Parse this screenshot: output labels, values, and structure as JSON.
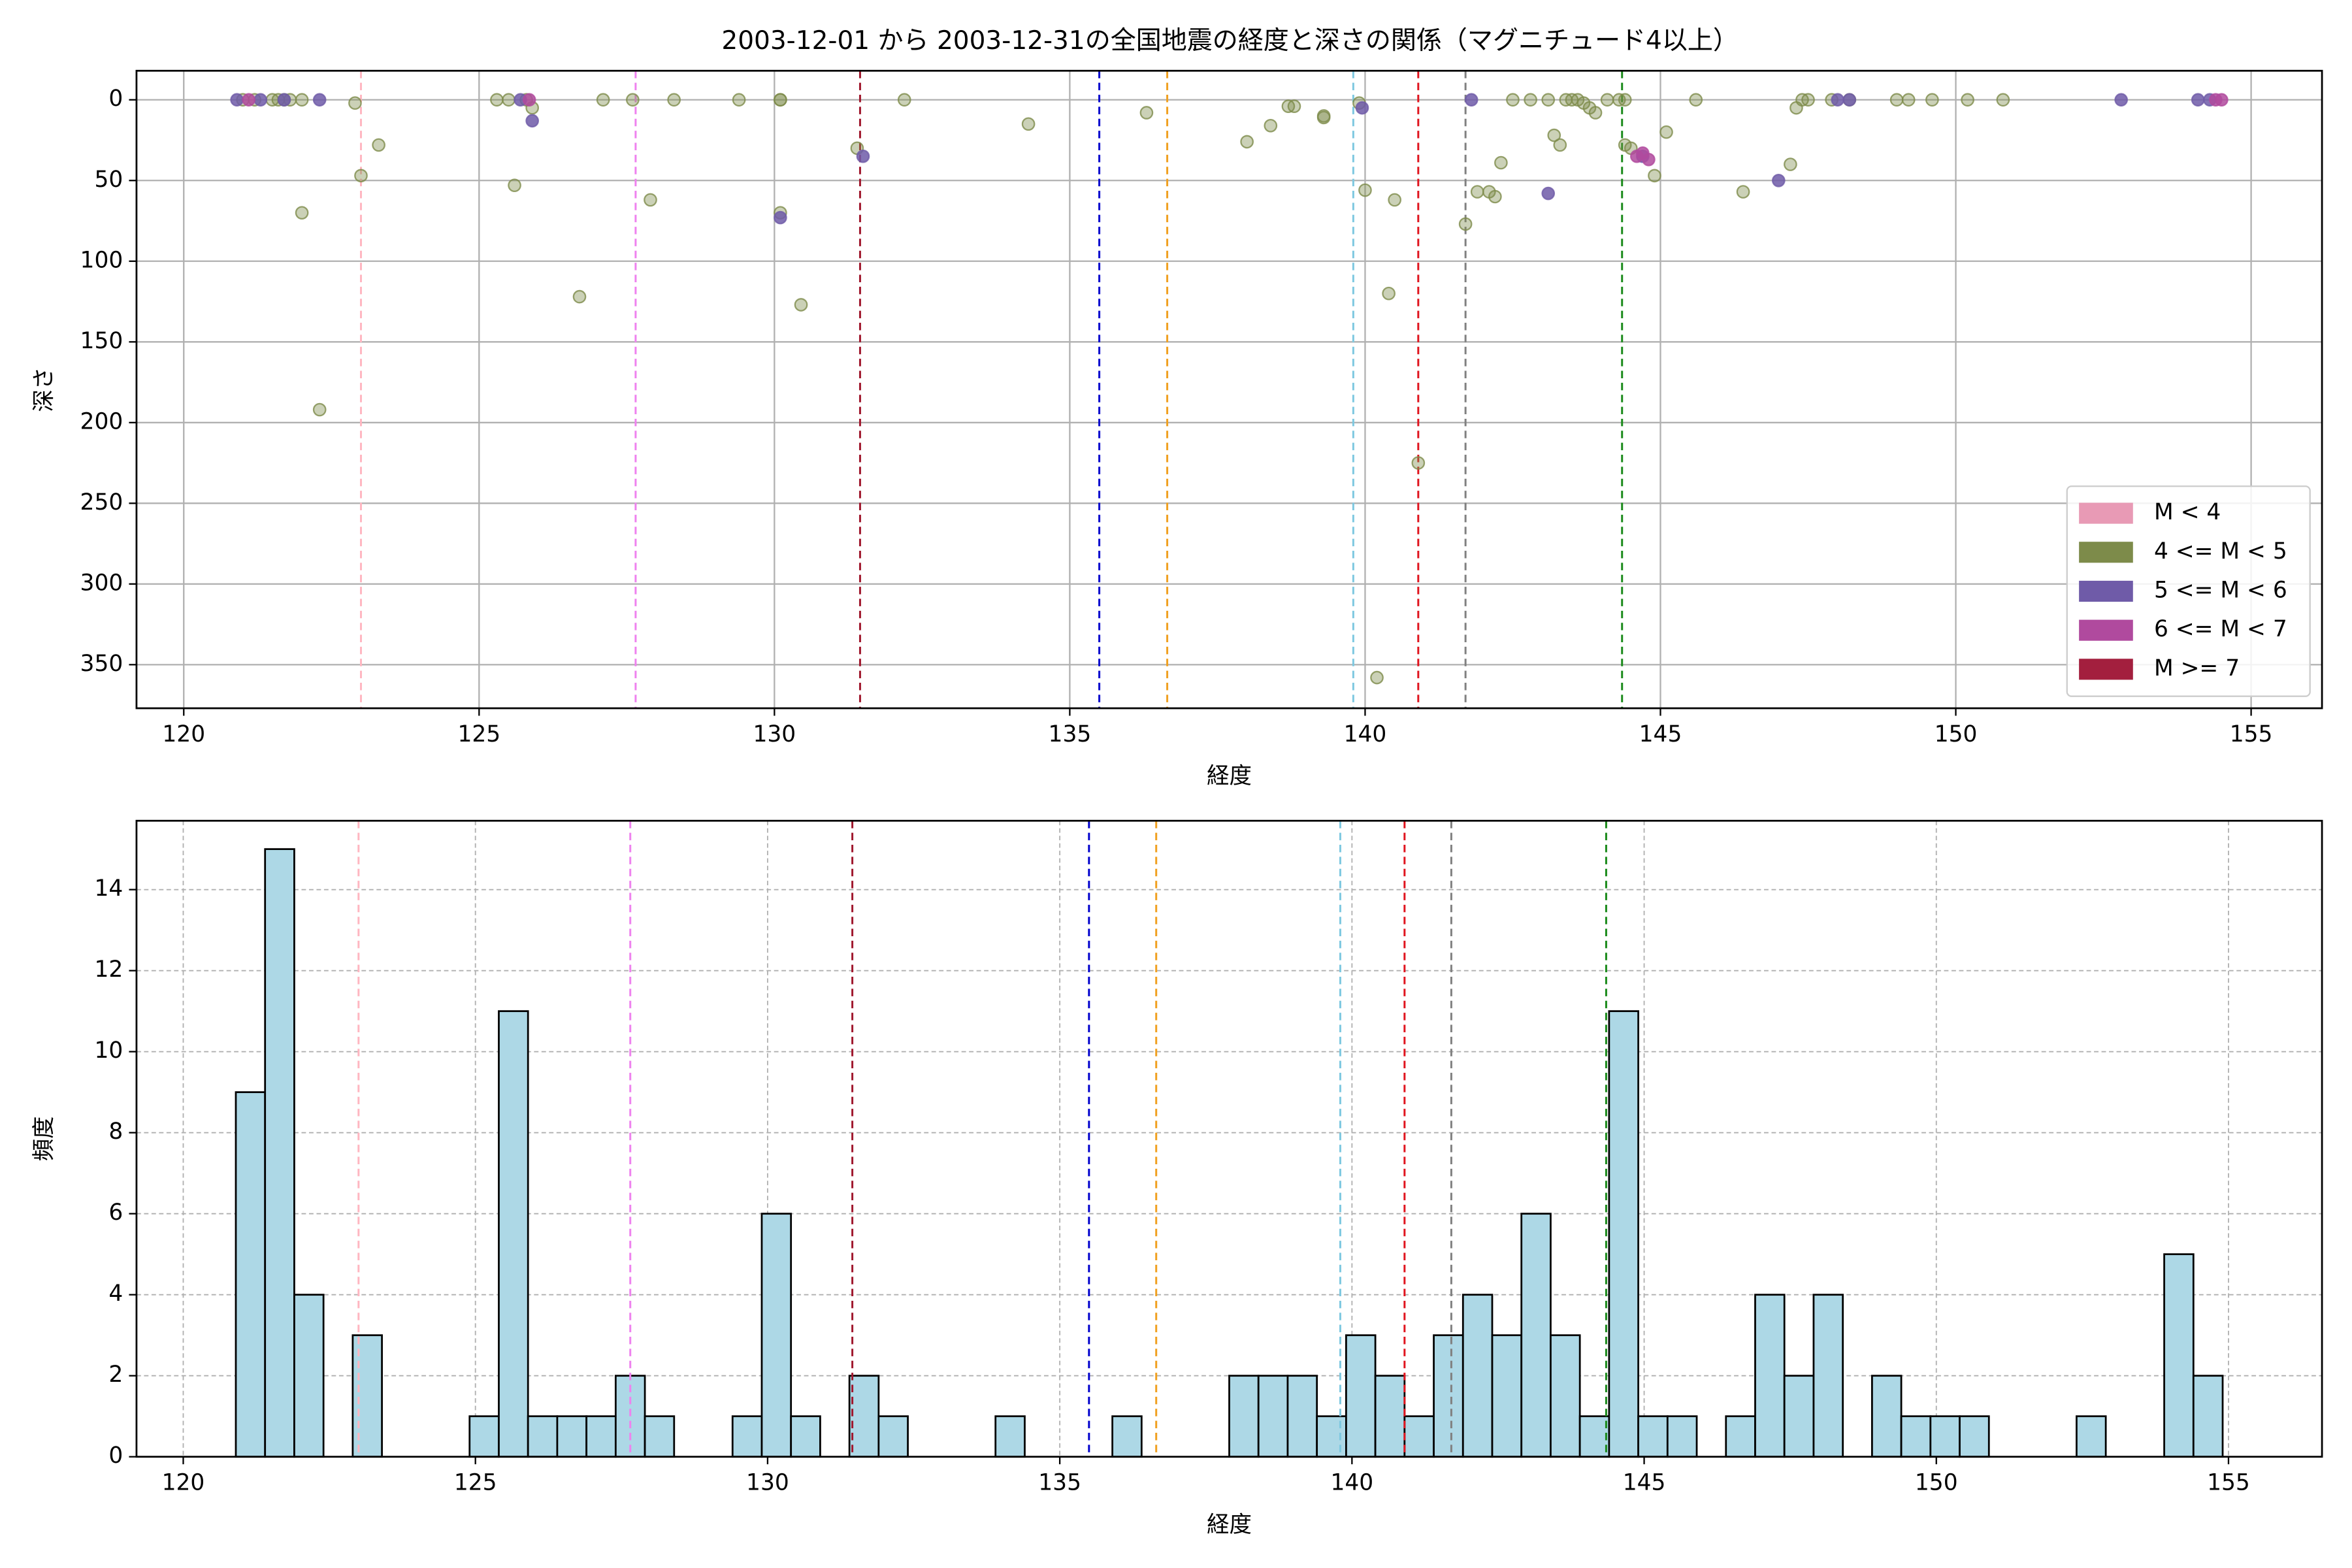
{
  "chart_data": [
    {
      "type": "scatter",
      "title": "2003-12-01 から 2003-12-31の全国地震の経度と深さの関係（マグニチュード4以上）",
      "x_label": "経度",
      "y_label": "深さ",
      "xlim": [
        119.2,
        156.2
      ],
      "xticks": [
        120,
        125,
        130,
        135,
        140,
        145,
        150,
        155
      ],
      "ylim": [
        377,
        -18
      ],
      "yticks": [
        0,
        50,
        100,
        150,
        200,
        250,
        300,
        350
      ],
      "grid": true,
      "legend": "lower right",
      "alpha": 0.4,
      "reference_lines": [
        {
          "value": 123.0,
          "color": "#ffb6c1"
        },
        {
          "value": 127.65,
          "color": "#ee82ee"
        },
        {
          "value": 131.45,
          "color": "#a0182e"
        },
        {
          "value": 135.5,
          "color": "#0000cc"
        },
        {
          "value": 136.65,
          "color": "#f0a020"
        },
        {
          "value": 139.8,
          "color": "#7ec8e0"
        },
        {
          "value": 140.9,
          "color": "#e0141e"
        },
        {
          "value": 141.7,
          "color": "#808080"
        },
        {
          "value": 144.35,
          "color": "#1a8a1a"
        }
      ],
      "series": [
        {
          "name": "M < 4",
          "color": "#e89ab5",
          "x": [],
          "values": []
        },
        {
          "name": "4 <= M < 5",
          "color": "#7d8b4a",
          "x": [
            121.0,
            121.2,
            121.5,
            121.6,
            121.7,
            121.8,
            122.0,
            122.0,
            122.3,
            122.9,
            123.0,
            123.3,
            125.3,
            125.5,
            125.6,
            125.8,
            125.9,
            126.7,
            127.1,
            127.6,
            127.9,
            128.3,
            129.4,
            130.1,
            130.1,
            130.1,
            130.45,
            131.4,
            132.2,
            134.3,
            136.3,
            138.0,
            138.4,
            138.7,
            138.8,
            139.3,
            139.3,
            139.9,
            140.0,
            140.4,
            140.5,
            140.9,
            140.2,
            141.7,
            141.9,
            142.1,
            142.2,
            142.3,
            142.5,
            142.8,
            143.1,
            143.2,
            143.3,
            143.4,
            143.5,
            143.6,
            143.7,
            143.8,
            143.9,
            144.1,
            144.3,
            144.4,
            144.4,
            144.5,
            144.9,
            145.1,
            145.6,
            146.4,
            147.2,
            147.3,
            147.4,
            147.5,
            147.9,
            148.2,
            149.0,
            149.2,
            149.6,
            150.2,
            150.8
          ],
          "values": [
            0,
            0,
            0,
            0,
            0,
            0,
            70,
            0,
            192,
            2,
            47,
            28,
            0,
            0,
            53,
            0,
            5,
            122,
            0,
            0,
            62,
            0,
            0,
            0,
            0,
            70,
            127,
            30,
            0,
            15,
            8,
            26,
            16,
            4,
            4,
            10,
            11,
            2,
            56,
            120,
            62,
            225,
            358,
            77,
            57,
            57,
            60,
            39,
            0,
            0,
            0,
            22,
            28,
            0,
            0,
            0,
            2,
            5,
            8,
            0,
            0,
            28,
            0,
            30,
            47,
            20,
            0,
            57,
            40,
            5,
            0,
            0,
            0,
            0,
            0,
            0,
            0,
            0,
            0
          ]
        },
        {
          "name": "5 <= M < 6",
          "color": "#6f5ba8",
          "x": [
            120.9,
            121.3,
            121.7,
            122.3,
            125.7,
            125.9,
            130.1,
            131.5,
            139.95,
            141.8,
            143.1,
            144.7,
            147.0,
            148.0,
            148.2,
            152.8,
            154.1,
            154.3
          ],
          "values": [
            0,
            0,
            0,
            0,
            0,
            13,
            73,
            35,
            5,
            0,
            58,
            35,
            50,
            0,
            0,
            0,
            0,
            0
          ]
        },
        {
          "name": "6 <= M < 7",
          "color": "#b04a9e",
          "x": [
            121.1,
            125.85,
            144.6,
            144.7,
            144.8,
            154.4,
            154.5
          ],
          "values": [
            0,
            0,
            35,
            33,
            37,
            0,
            0
          ]
        },
        {
          "name": "M >= 7",
          "color": "#a31f3e",
          "x": [],
          "values": []
        }
      ]
    },
    {
      "type": "histogram",
      "x_label": "経度",
      "y_label": "頻度",
      "xlim": [
        119.2,
        156.6
      ],
      "xticks": [
        120,
        125,
        130,
        135,
        140,
        145,
        150,
        155
      ],
      "ylim": [
        0,
        15.7
      ],
      "yticks": [
        0,
        2,
        4,
        6,
        8,
        10,
        12,
        14
      ],
      "grid": true,
      "color": "#add8e6",
      "edgecolor": "#000000",
      "reference_lines": [
        {
          "value": 123.0,
          "color": "#ffb6c1"
        },
        {
          "value": 127.65,
          "color": "#ee82ee"
        },
        {
          "value": 131.45,
          "color": "#a0182e"
        },
        {
          "value": 135.5,
          "color": "#0000cc"
        },
        {
          "value": 136.65,
          "color": "#f0a020"
        },
        {
          "value": 139.8,
          "color": "#7ec8e0"
        },
        {
          "value": 140.9,
          "color": "#e0141e"
        },
        {
          "value": 141.7,
          "color": "#808080"
        },
        {
          "value": 144.35,
          "color": "#1a8a1a"
        }
      ],
      "bins": [
        120.9,
        121.4,
        121.9,
        122.4,
        122.9,
        123.4,
        123.9,
        124.4,
        124.9,
        125.4,
        125.9,
        126.4,
        126.9,
        127.4,
        127.9,
        128.4,
        128.9,
        129.4,
        129.9,
        130.4,
        130.9,
        131.4,
        131.9,
        132.4,
        132.9,
        133.4,
        133.9,
        134.4,
        134.9,
        135.4,
        135.9,
        136.4,
        136.9,
        137.4,
        137.9,
        138.4,
        138.9,
        139.4,
        139.9,
        140.4,
        140.9,
        141.4,
        141.9,
        142.4,
        142.9,
        143.4,
        143.9,
        144.4,
        144.9,
        145.4,
        145.9,
        146.4,
        146.9,
        147.4,
        147.9,
        148.4,
        148.9,
        149.4,
        149.9,
        150.4,
        150.9,
        151.4,
        151.9,
        152.4,
        152.9,
        153.4,
        153.9,
        154.4,
        154.9
      ],
      "values": [
        9,
        15,
        4,
        0,
        3,
        0,
        0,
        0,
        1,
        11,
        1,
        1,
        1,
        2,
        1,
        0,
        0,
        1,
        6,
        1,
        0,
        2,
        1,
        0,
        0,
        0,
        1,
        0,
        0,
        0,
        1,
        0,
        0,
        0,
        2,
        2,
        2,
        1,
        3,
        2,
        1,
        3,
        4,
        3,
        6,
        3,
        1,
        11,
        1,
        1,
        0,
        1,
        4,
        2,
        4,
        0,
        2,
        1,
        1,
        1,
        0,
        0,
        0,
        1,
        0,
        0,
        5,
        2
      ]
    }
  ]
}
